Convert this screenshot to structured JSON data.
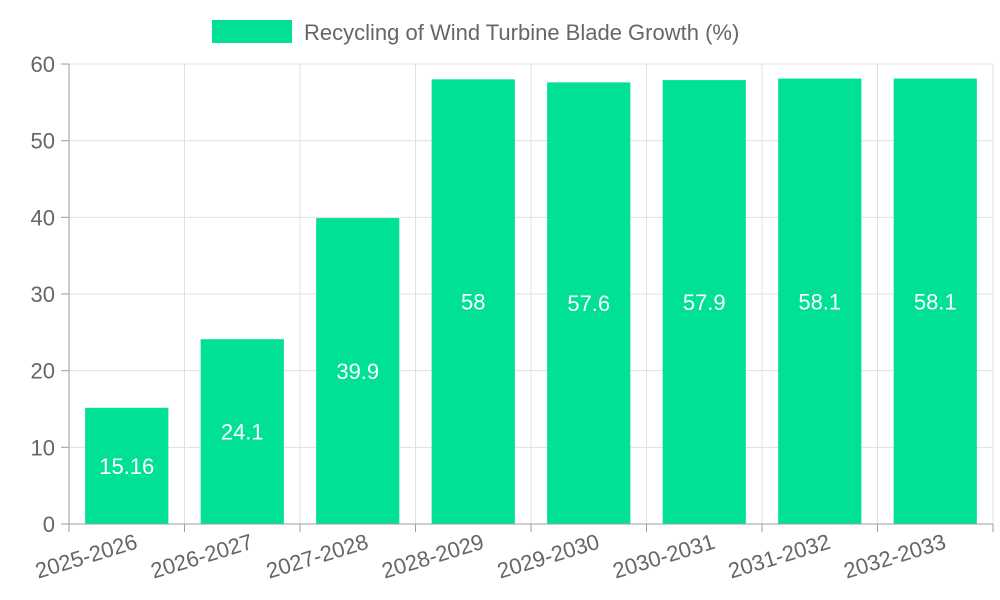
{
  "chart_data": {
    "type": "bar",
    "title": "",
    "xlabel": "",
    "ylabel": "",
    "categories": [
      "2025-2026",
      "2026-2027",
      "2027-2028",
      "2028-2029",
      "2029-2030",
      "2030-2031",
      "2031-2032",
      "2032-2033"
    ],
    "series": [
      {
        "name": "Recycling of Wind Turbine Blade Growth (%)",
        "color": "#00e096",
        "values": [
          15.16,
          24.1,
          39.9,
          58,
          57.6,
          57.9,
          58.1,
          58.1
        ]
      }
    ],
    "ylim": [
      0,
      60
    ],
    "yticks": [
      0,
      10,
      20,
      30,
      40,
      50,
      60
    ],
    "grid": true,
    "legend_position": "top-center",
    "data_labels": true
  }
}
